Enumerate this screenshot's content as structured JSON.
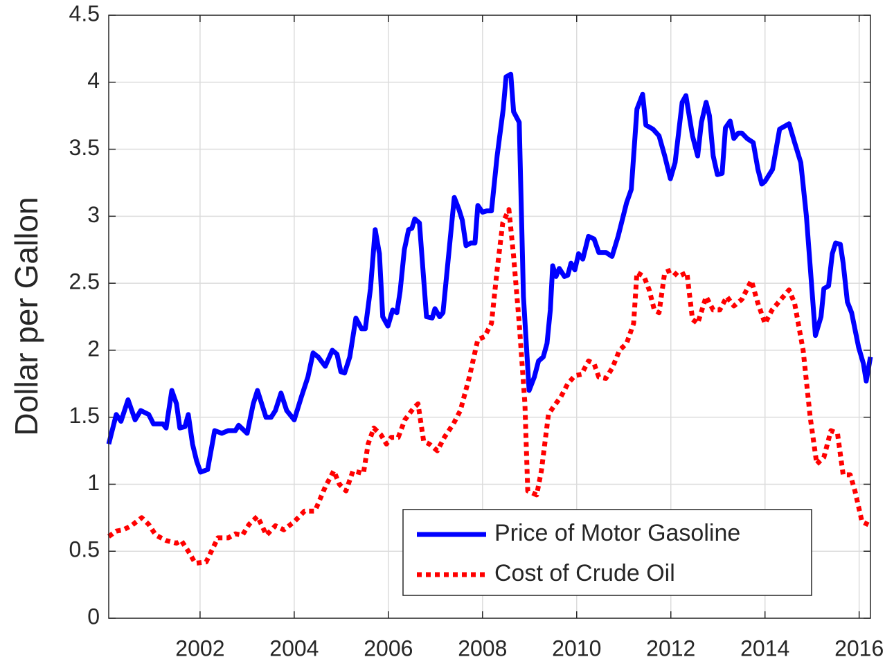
{
  "chart_data": {
    "type": "line",
    "ylabel": "Dollar per Gallon",
    "xlim": [
      2000.06,
      2016.24
    ],
    "xticks": [
      2002,
      2004,
      2006,
      2008,
      2010,
      2012,
      2014,
      2016
    ],
    "ylim": [
      0,
      4.5
    ],
    "yticks": [
      0,
      0.5,
      1,
      1.5,
      2,
      2.5,
      3,
      3.5,
      4,
      4.5
    ],
    "grid": true,
    "legend": "lower right",
    "series": [
      {
        "name": "Price of Motor Gasoline",
        "color": "#0000ff",
        "linestyle": "solid",
        "x": [
          2000.06,
          2000.22,
          2000.32,
          2000.47,
          2000.62,
          2000.74,
          2000.91,
          2001.01,
          2001.21,
          2001.28,
          2001.4,
          2001.5,
          2001.57,
          2001.68,
          2001.75,
          2001.84,
          2001.93,
          2002.01,
          2002.16,
          2002.31,
          2002.46,
          2002.6,
          2002.75,
          2002.82,
          2003.0,
          2003.13,
          2003.22,
          2003.4,
          2003.51,
          2003.6,
          2003.72,
          2003.84,
          2004.0,
          2004.15,
          2004.29,
          2004.4,
          2004.51,
          2004.66,
          2004.81,
          2004.91,
          2004.99,
          2005.07,
          2005.18,
          2005.31,
          2005.43,
          2005.51,
          2005.62,
          2005.72,
          2005.81,
          2005.88,
          2005.99,
          2006.09,
          2006.18,
          2006.25,
          2006.34,
          2006.43,
          2006.5,
          2006.56,
          2006.66,
          2006.81,
          2006.93,
          2006.99,
          2007.09,
          2007.16,
          2007.4,
          2007.5,
          2007.57,
          2007.65,
          2007.75,
          2007.84,
          2007.9,
          2008.0,
          2008.09,
          2008.19,
          2008.31,
          2008.44,
          2008.5,
          2008.6,
          2008.66,
          2008.78,
          2008.87,
          2008.99,
          2009.1,
          2009.19,
          2009.29,
          2009.37,
          2009.44,
          2009.49,
          2009.56,
          2009.63,
          2009.74,
          2009.81,
          2009.88,
          2009.96,
          2010.04,
          2010.13,
          2010.25,
          2010.37,
          2010.47,
          2010.62,
          2010.75,
          2010.88,
          2011.06,
          2011.16,
          2011.28,
          2011.4,
          2011.47,
          2011.62,
          2011.75,
          2011.87,
          2011.99,
          2012.09,
          2012.24,
          2012.32,
          2012.46,
          2012.57,
          2012.65,
          2012.75,
          2012.82,
          2012.9,
          2012.99,
          2013.09,
          2013.16,
          2013.26,
          2013.34,
          2013.43,
          2013.51,
          2013.62,
          2013.75,
          2013.85,
          2013.93,
          2014.0,
          2014.16,
          2014.31,
          2014.51,
          2014.63,
          2014.76,
          2014.88,
          2015.07,
          2015.19,
          2015.25,
          2015.35,
          2015.43,
          2015.5,
          2015.6,
          2015.66,
          2015.75,
          2015.84,
          2015.99,
          2016.09,
          2016.15,
          2016.24
        ],
        "values": [
          1.3,
          1.52,
          1.47,
          1.63,
          1.48,
          1.55,
          1.52,
          1.45,
          1.45,
          1.42,
          1.7,
          1.6,
          1.42,
          1.43,
          1.52,
          1.3,
          1.17,
          1.09,
          1.11,
          1.4,
          1.38,
          1.4,
          1.4,
          1.44,
          1.38,
          1.6,
          1.7,
          1.5,
          1.5,
          1.55,
          1.68,
          1.55,
          1.48,
          1.65,
          1.8,
          1.98,
          1.95,
          1.88,
          2.0,
          1.97,
          1.84,
          1.83,
          1.95,
          2.24,
          2.16,
          2.16,
          2.46,
          2.9,
          2.72,
          2.25,
          2.18,
          2.3,
          2.28,
          2.44,
          2.75,
          2.9,
          2.91,
          2.98,
          2.95,
          2.25,
          2.24,
          2.31,
          2.25,
          2.28,
          3.14,
          3.05,
          2.97,
          2.78,
          2.8,
          2.8,
          3.08,
          3.03,
          3.04,
          3.04,
          3.45,
          3.8,
          4.04,
          4.06,
          3.78,
          3.7,
          2.4,
          1.7,
          1.8,
          1.92,
          1.95,
          2.05,
          2.3,
          2.63,
          2.55,
          2.61,
          2.55,
          2.56,
          2.65,
          2.6,
          2.72,
          2.68,
          2.85,
          2.83,
          2.73,
          2.73,
          2.7,
          2.85,
          3.1,
          3.2,
          3.8,
          3.91,
          3.68,
          3.65,
          3.6,
          3.45,
          3.28,
          3.4,
          3.85,
          3.9,
          3.6,
          3.45,
          3.7,
          3.85,
          3.75,
          3.45,
          3.31,
          3.32,
          3.66,
          3.71,
          3.58,
          3.62,
          3.62,
          3.58,
          3.55,
          3.35,
          3.24,
          3.26,
          3.35,
          3.65,
          3.69,
          3.55,
          3.4,
          3.0,
          2.11,
          2.25,
          2.46,
          2.48,
          2.72,
          2.8,
          2.79,
          2.65,
          2.36,
          2.28,
          2.02,
          1.9,
          1.77,
          1.95
        ]
      },
      {
        "name": "Cost of Crude Oil",
        "color": "#ff0000",
        "linestyle": "dotted",
        "x": [
          2000.06,
          2000.22,
          2000.37,
          2000.54,
          2000.76,
          2000.91,
          2001.06,
          2001.28,
          2001.5,
          2001.6,
          2001.75,
          2001.9,
          2002.13,
          2002.38,
          2002.6,
          2002.75,
          2002.9,
          2003.04,
          2003.22,
          2003.41,
          2003.6,
          2003.78,
          2004.0,
          2004.22,
          2004.44,
          2004.66,
          2004.84,
          2004.96,
          2005.1,
          2005.25,
          2005.47,
          2005.57,
          2005.69,
          2005.84,
          2005.96,
          2006.06,
          2006.21,
          2006.35,
          2006.54,
          2006.63,
          2006.75,
          2006.87,
          2007.04,
          2007.19,
          2007.38,
          2007.53,
          2007.72,
          2007.9,
          2008.04,
          2008.19,
          2008.31,
          2008.43,
          2008.56,
          2008.66,
          2008.78,
          2008.9,
          2008.96,
          2009.15,
          2009.25,
          2009.4,
          2009.51,
          2009.66,
          2009.81,
          2009.96,
          2010.1,
          2010.25,
          2010.37,
          2010.47,
          2010.62,
          2010.76,
          2010.91,
          2011.06,
          2011.21,
          2011.28,
          2011.43,
          2011.54,
          2011.65,
          2011.75,
          2011.87,
          2012.01,
          2012.16,
          2012.34,
          2012.46,
          2012.57,
          2012.75,
          2012.9,
          2013.04,
          2013.19,
          2013.34,
          2013.51,
          2013.71,
          2013.85,
          2014.0,
          2014.15,
          2014.34,
          2014.51,
          2014.63,
          2014.81,
          2014.96,
          2015.1,
          2015.25,
          2015.4,
          2015.54,
          2015.66,
          2015.81,
          2015.91,
          2016.06,
          2016.24
        ],
        "values": [
          0.61,
          0.65,
          0.66,
          0.69,
          0.75,
          0.7,
          0.62,
          0.58,
          0.56,
          0.58,
          0.5,
          0.41,
          0.42,
          0.6,
          0.6,
          0.63,
          0.62,
          0.7,
          0.76,
          0.62,
          0.69,
          0.66,
          0.72,
          0.8,
          0.8,
          0.98,
          1.1,
          1.0,
          0.95,
          1.1,
          1.08,
          1.3,
          1.42,
          1.37,
          1.3,
          1.35,
          1.35,
          1.48,
          1.57,
          1.6,
          1.32,
          1.3,
          1.25,
          1.35,
          1.45,
          1.55,
          1.8,
          2.08,
          2.1,
          2.2,
          2.6,
          2.95,
          3.05,
          2.7,
          2.2,
          1.6,
          0.95,
          0.92,
          1.1,
          1.52,
          1.58,
          1.65,
          1.75,
          1.81,
          1.82,
          1.92,
          1.9,
          1.8,
          1.79,
          1.87,
          2.0,
          2.05,
          2.2,
          2.58,
          2.55,
          2.45,
          2.3,
          2.28,
          2.58,
          2.6,
          2.55,
          2.58,
          2.23,
          2.2,
          2.4,
          2.3,
          2.3,
          2.4,
          2.33,
          2.38,
          2.52,
          2.35,
          2.2,
          2.3,
          2.38,
          2.45,
          2.35,
          2.0,
          1.5,
          1.15,
          1.2,
          1.4,
          1.38,
          1.07,
          1.07,
          0.95,
          0.72,
          0.69
        ]
      }
    ]
  }
}
